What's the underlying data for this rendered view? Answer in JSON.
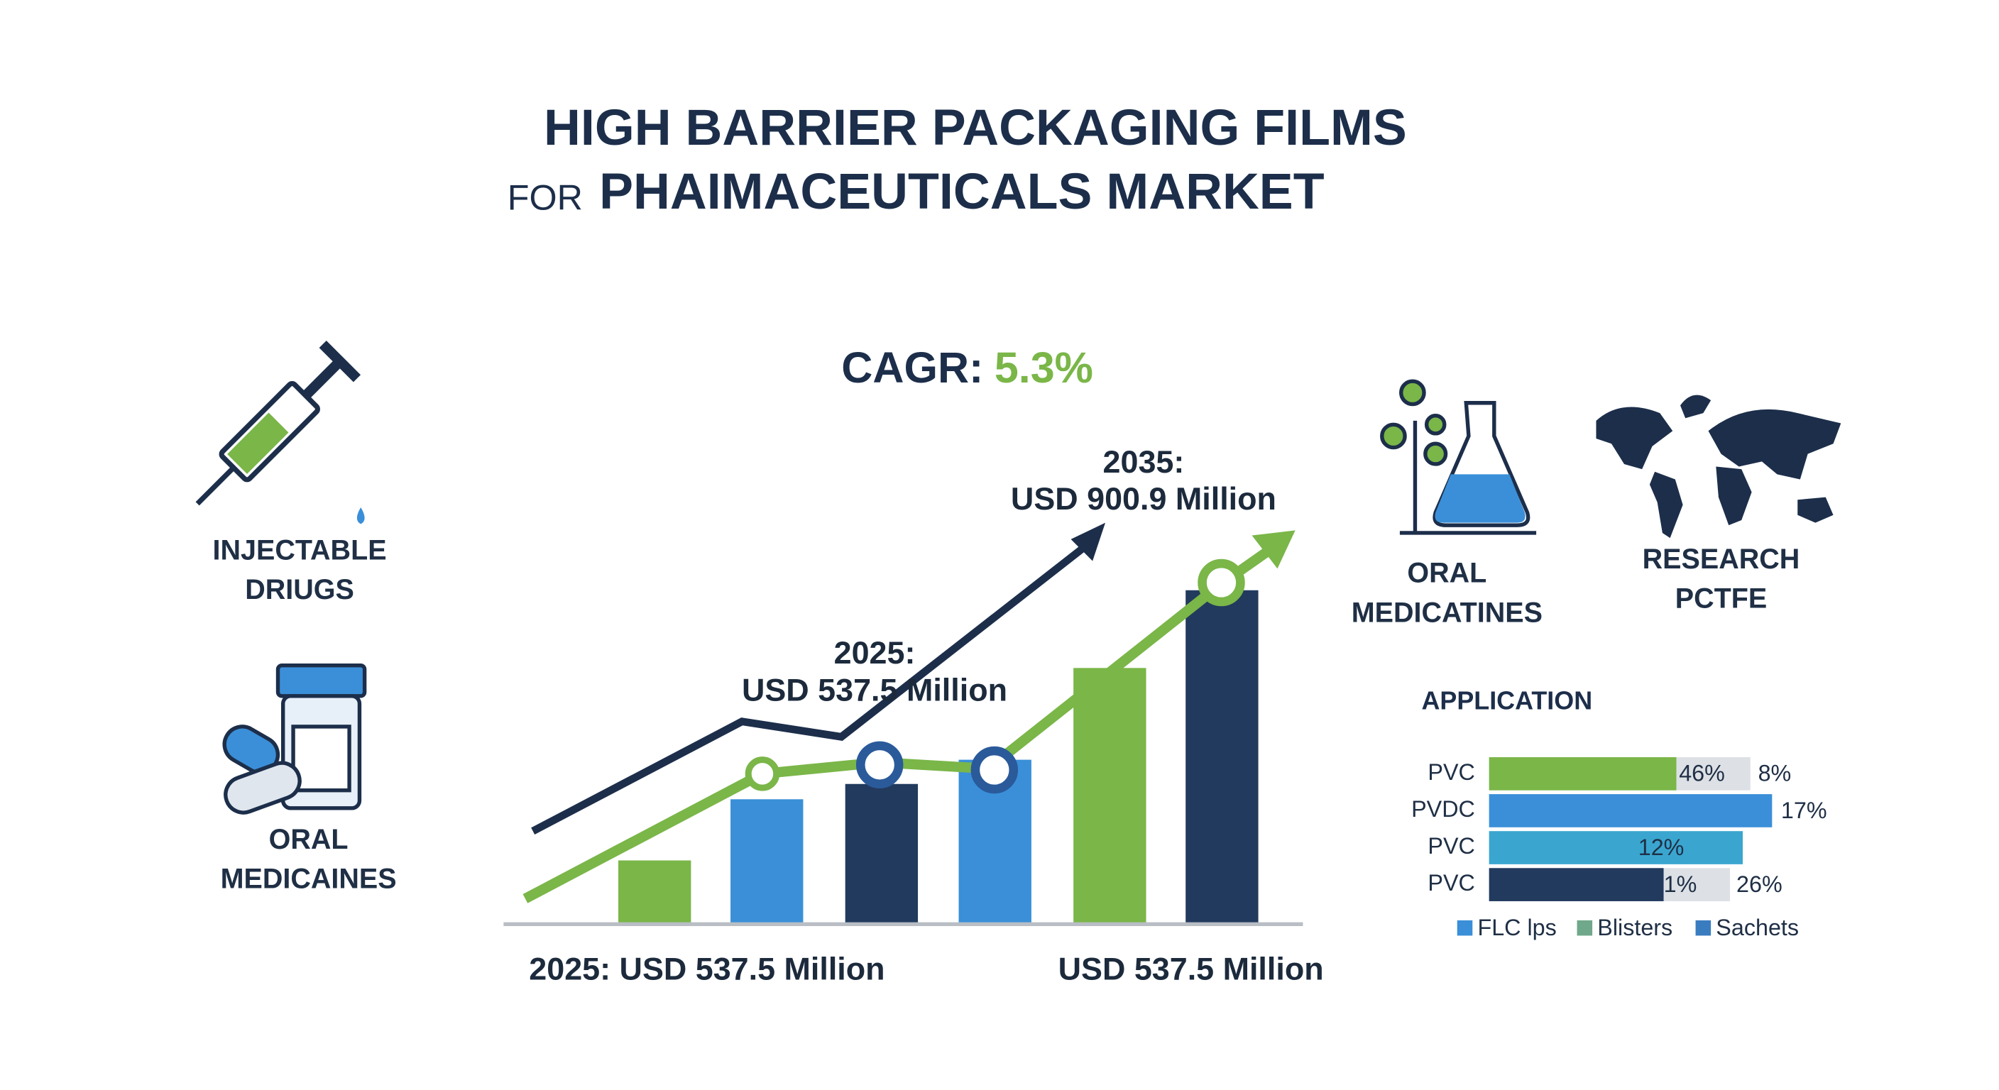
{
  "header": {
    "title_line1": "HIGH BARRIER PACKAGING FILMS",
    "title_prefix": "FOR",
    "title_line2": "PHAIMACEUTICALS MARKET"
  },
  "cagr": {
    "label": "CAGR:",
    "value": "5.3%"
  },
  "icons": [
    {
      "label_lines": [
        "INJECTABLE",
        "DRIUGS"
      ]
    },
    {
      "label_lines": [
        "ORAL",
        "MEDICAINES"
      ]
    },
    {
      "label_lines": [
        "ORAL",
        "MEDICATINES"
      ]
    },
    {
      "label_lines": [
        "RESEARCH",
        "PCTFE"
      ]
    }
  ],
  "growth": {
    "start_label_lines": [
      "2025:",
      "USD 537.5 Million"
    ],
    "end_label_lines": [
      "2035:",
      "USD 900.9 Million"
    ],
    "footer_left": "2025: USD 537.5 Million",
    "footer_right": "USD 537.5 Million"
  },
  "application": {
    "title": "APPLICATION",
    "rows": [
      {
        "label": "PVC",
        "value_labels": [
          "46%",
          "8%"
        ]
      },
      {
        "label": "PVDC",
        "value_labels": [
          "17%"
        ]
      },
      {
        "label": "PVC",
        "value_labels": [
          "12%"
        ]
      },
      {
        "label": "PVC",
        "value_labels": [
          "1%",
          "26%"
        ]
      }
    ],
    "legend": [
      "FLC lps",
      "Blisters",
      "Sachets"
    ]
  }
}
